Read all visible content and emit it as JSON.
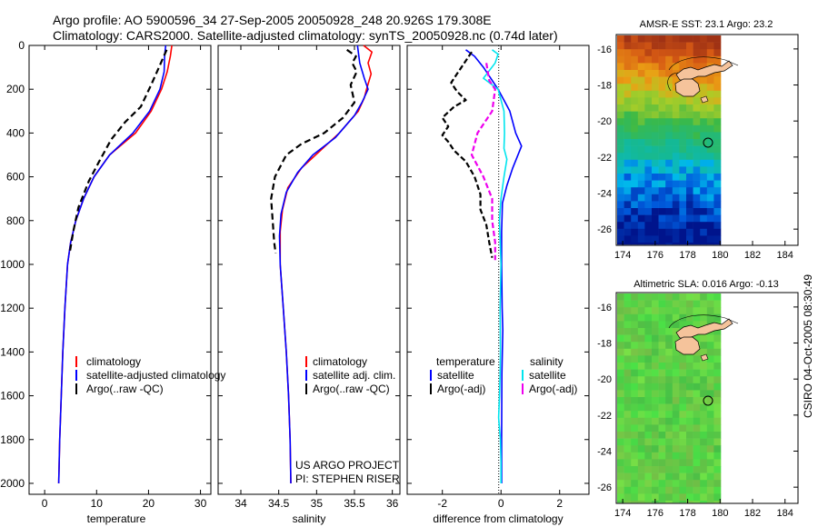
{
  "header": {
    "line1": "Argo profile: AO 5900596_34 27-Sep-2005 20050928_248 20.926S 179.308E",
    "line2": "Climatology: CARS2000. Satellite-adjusted climatology: synTS_20050928.nc (0.74d later)"
  },
  "colors": {
    "climatology": "#ff0000",
    "satellite": "#0000ff",
    "argo": "#000000",
    "sat_salinity": "#00e5ee",
    "argo_adj": "#ee00ee",
    "land": "#f5c39b"
  },
  "chart_data": [
    {
      "id": "temperature",
      "type": "line",
      "xlabel": "temperature",
      "xlim": [
        -3,
        32
      ],
      "ylim": [
        0,
        2050
      ],
      "xticks": [
        "0",
        "10",
        "20",
        "30"
      ],
      "xtick_values": [
        0,
        10,
        20,
        30
      ],
      "yticks": [
        "0",
        "200",
        "400",
        "600",
        "800",
        "1000",
        "1200",
        "1400",
        "1600",
        "1800",
        "2000"
      ],
      "legend": {
        "climatology": "climatology",
        "satellite": "satellite-adjusted climatology",
        "argo": "Argo(..raw -QC)"
      },
      "series": [
        {
          "name": "climatology",
          "color": "#ff0000",
          "dash": "",
          "points": [
            [
              24.5,
              0
            ],
            [
              24.2,
              50
            ],
            [
              23.6,
              120
            ],
            [
              22.5,
              200
            ],
            [
              20.5,
              300
            ],
            [
              17.5,
              400
            ],
            [
              12.5,
              500
            ],
            [
              9.5,
              600
            ],
            [
              7.5,
              700
            ],
            [
              6,
              800
            ],
            [
              5,
              900
            ],
            [
              4.4,
              1000
            ],
            [
              3.9,
              1200
            ],
            [
              3.5,
              1400
            ],
            [
              3.2,
              1600
            ],
            [
              2.9,
              1800
            ],
            [
              2.7,
              2000
            ]
          ]
        },
        {
          "name": "satellite",
          "color": "#0000ff",
          "dash": "",
          "points": [
            [
              23.3,
              0
            ],
            [
              23.1,
              50
            ],
            [
              23,
              120
            ],
            [
              22.2,
              200
            ],
            [
              20.2,
              300
            ],
            [
              17,
              400
            ],
            [
              12.5,
              500
            ],
            [
              9.5,
              600
            ],
            [
              7.5,
              700
            ],
            [
              6,
              800
            ],
            [
              5,
              900
            ],
            [
              4.4,
              1000
            ],
            [
              3.9,
              1200
            ],
            [
              3.5,
              1400
            ],
            [
              3.2,
              1600
            ],
            [
              2.9,
              1800
            ],
            [
              2.7,
              2000
            ]
          ]
        },
        {
          "name": "argo",
          "color": "#000000",
          "dash": "7,4",
          "points": [
            [
              23.5,
              20
            ],
            [
              22,
              100
            ],
            [
              20.5,
              180
            ],
            [
              18.5,
              280
            ],
            [
              15.5,
              350
            ],
            [
              12.8,
              430
            ],
            [
              10.5,
              530
            ],
            [
              8.5,
              620
            ],
            [
              6.5,
              740
            ],
            [
              5.5,
              850
            ],
            [
              4.8,
              950
            ]
          ]
        }
      ]
    },
    {
      "id": "salinity",
      "type": "line",
      "xlabel": "salinity",
      "xlim": [
        33.7,
        36.1
      ],
      "ylim": [
        0,
        2050
      ],
      "xticks": [
        "34",
        "34.5",
        "35",
        "35.5",
        "36"
      ],
      "xtick_values": [
        34,
        34.5,
        35,
        35.5,
        36
      ],
      "legend": {
        "climatology": "climatology",
        "satellite": "satellite adj. clim.",
        "argo": "Argo(..raw -QC)"
      },
      "credit1": "US ARGO PROJECT",
      "credit2": "PI: STEPHEN RISER",
      "series": [
        {
          "name": "climatology",
          "color": "#ff0000",
          "dash": "",
          "points": [
            [
              35.62,
              0
            ],
            [
              35.73,
              30
            ],
            [
              35.68,
              80
            ],
            [
              35.72,
              130
            ],
            [
              35.66,
              200
            ],
            [
              35.63,
              240
            ],
            [
              35.55,
              300
            ],
            [
              35.3,
              400
            ],
            [
              35.05,
              480
            ],
            [
              34.8,
              560
            ],
            [
              34.62,
              650
            ],
            [
              34.55,
              750
            ],
            [
              34.52,
              850
            ],
            [
              34.52,
              1000
            ],
            [
              34.56,
              1200
            ],
            [
              34.6,
              1400
            ],
            [
              34.63,
              1600
            ],
            [
              34.65,
              1800
            ],
            [
              34.66,
              2000
            ]
          ]
        },
        {
          "name": "satellite",
          "color": "#0000ff",
          "dash": "",
          "points": [
            [
              35.54,
              0
            ],
            [
              35.57,
              80
            ],
            [
              35.63,
              150
            ],
            [
              35.68,
              200
            ],
            [
              35.6,
              260
            ],
            [
              35.5,
              320
            ],
            [
              35.25,
              420
            ],
            [
              34.95,
              500
            ],
            [
              34.75,
              580
            ],
            [
              34.6,
              670
            ],
            [
              34.53,
              770
            ],
            [
              34.51,
              870
            ],
            [
              34.52,
              1000
            ],
            [
              34.56,
              1200
            ],
            [
              34.6,
              1400
            ],
            [
              34.63,
              1600
            ],
            [
              34.65,
              1800
            ],
            [
              34.66,
              2000
            ]
          ]
        },
        {
          "name": "argo",
          "color": "#000000",
          "dash": "7,4",
          "points": [
            [
              35.4,
              20
            ],
            [
              35.52,
              50
            ],
            [
              35.47,
              80
            ],
            [
              35.53,
              120
            ],
            [
              35.45,
              180
            ],
            [
              35.5,
              260
            ],
            [
              35.35,
              330
            ],
            [
              35.1,
              400
            ],
            [
              34.8,
              450
            ],
            [
              34.6,
              500
            ],
            [
              34.45,
              600
            ],
            [
              34.4,
              700
            ],
            [
              34.42,
              800
            ],
            [
              34.44,
              900
            ],
            [
              34.46,
              950
            ]
          ]
        }
      ]
    },
    {
      "id": "difference",
      "type": "line",
      "xlabel": "difference from climatology",
      "xlim": [
        -3.2,
        3
      ],
      "ylim": [
        0,
        2050
      ],
      "xticks": [
        "-2",
        "0",
        "2"
      ],
      "xtick_values": [
        -2,
        0,
        2
      ],
      "legend": {
        "temp_title": "temperature",
        "sal_title": "salinity",
        "sat_t": "satellite",
        "argo_t": "Argo(-adj)",
        "sat_s": "satellite",
        "argo_s": "Argo(-adj)"
      },
      "series": [
        {
          "name": "temp-satellite",
          "color": "#0000ff",
          "dash": "",
          "points": [
            [
              -1.2,
              20
            ],
            [
              -0.9,
              50
            ],
            [
              -0.6,
              100
            ],
            [
              -0.1,
              200
            ],
            [
              0.1,
              250
            ],
            [
              0.3,
              300
            ],
            [
              0.5,
              400
            ],
            [
              0.7,
              460
            ],
            [
              0.4,
              560
            ],
            [
              0.2,
              640
            ],
            [
              0.05,
              720
            ],
            [
              0.02,
              850
            ],
            [
              0.02,
              1000
            ],
            [
              0.04,
              1200
            ],
            [
              0.06,
              1300
            ],
            [
              0.03,
              1500
            ],
            [
              0.02,
              1800
            ],
            [
              0.02,
              2000
            ]
          ]
        },
        {
          "name": "sal-satellite",
          "color": "#00e5ee",
          "dash": "",
          "points": [
            [
              -0.3,
              20
            ],
            [
              -0.1,
              40
            ],
            [
              -0.2,
              80
            ],
            [
              -0.6,
              150
            ],
            [
              -0.1,
              200
            ],
            [
              0.1,
              300
            ],
            [
              0.12,
              400
            ],
            [
              0.1,
              470
            ],
            [
              0.2,
              520
            ],
            [
              0.1,
              600
            ],
            [
              0,
              700
            ],
            [
              -0.05,
              800
            ],
            [
              0,
              1000
            ],
            [
              -0.03,
              1200
            ],
            [
              -0.02,
              1400
            ],
            [
              -0.03,
              1500
            ],
            [
              -0.05,
              1600
            ],
            [
              -0.08,
              1700
            ],
            [
              -0.02,
              1800
            ],
            [
              0,
              1900
            ],
            [
              0,
              2000
            ]
          ]
        },
        {
          "name": "temp-argo",
          "color": "#000000",
          "dash": "6,3",
          "points": [
            [
              -1,
              30
            ],
            [
              -1.3,
              90
            ],
            [
              -1.5,
              130
            ],
            [
              -1.7,
              170
            ],
            [
              -1.5,
              210
            ],
            [
              -1.2,
              250
            ],
            [
              -1.6,
              280
            ],
            [
              -2,
              330
            ],
            [
              -1.8,
              370
            ],
            [
              -2,
              410
            ],
            [
              -1.8,
              440
            ],
            [
              -1.6,
              480
            ],
            [
              -1.2,
              530
            ],
            [
              -0.9,
              600
            ],
            [
              -0.7,
              680
            ],
            [
              -0.7,
              750
            ],
            [
              -0.5,
              820
            ],
            [
              -0.4,
              900
            ],
            [
              -0.3,
              970
            ]
          ]
        },
        {
          "name": "sal-argo",
          "color": "#ee00ee",
          "dash": "6,3",
          "points": [
            [
              -0.5,
              80
            ],
            [
              -0.4,
              160
            ],
            [
              -0.2,
              200
            ],
            [
              -0.3,
              300
            ],
            [
              -0.8,
              400
            ],
            [
              -1,
              500
            ],
            [
              -0.6,
              600
            ],
            [
              -0.3,
              700
            ],
            [
              -0.3,
              800
            ],
            [
              -0.2,
              900
            ],
            [
              -0.2,
              980
            ]
          ]
        }
      ]
    }
  ],
  "maps": [
    {
      "id": "sst",
      "title": "AMSR-E SST: 23.1 Argo: 23.2",
      "xticks": [
        "174",
        "176",
        "178",
        "180",
        "182",
        "184"
      ],
      "yticks": [
        "-16",
        "-18",
        "-20",
        "-22",
        "-24",
        "-26"
      ]
    },
    {
      "id": "sla",
      "title": "Altimetric SLA: 0.016 Argo: -0.13",
      "xticks": [
        "174",
        "176",
        "178",
        "180",
        "182",
        "184"
      ],
      "yticks": [
        "-16",
        "-18",
        "-20",
        "-22",
        "-24",
        "-26"
      ]
    }
  ],
  "footer": {
    "stamp": "CSIRO 04-Oct-2005 08:30:49"
  }
}
